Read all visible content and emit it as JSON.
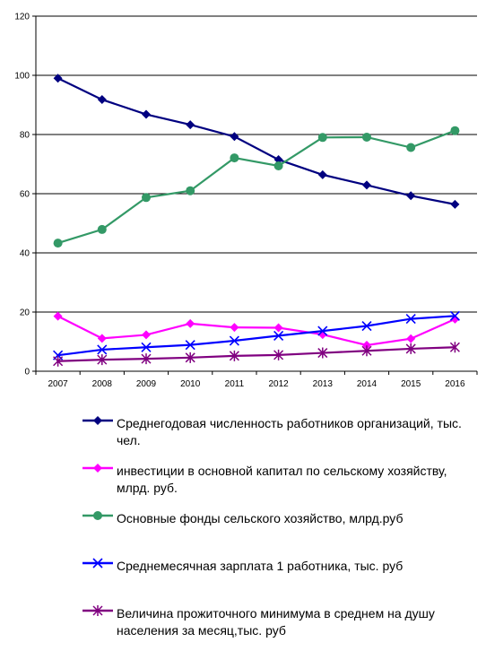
{
  "chart_data": {
    "type": "line",
    "x": [
      "2007",
      "2008",
      "2009",
      "2010",
      "2011",
      "2012",
      "2013",
      "2014",
      "2015",
      "2016"
    ],
    "ylim": [
      0,
      120
    ],
    "yticks": [
      0,
      20,
      40,
      60,
      80,
      100,
      120
    ],
    "grid": "horizontal",
    "legend_position": "bottom",
    "series": [
      {
        "name": "Среднегодовая численность работников организаций, тыс. чел.",
        "color": "#000080",
        "marker": "diamond",
        "values": [
          99,
          91.8,
          86.8,
          83.3,
          79.3,
          71.5,
          66.4,
          62.9,
          59.3,
          56.4
        ]
      },
      {
        "name": "инвестиции в основной капитал по сельскому хозяйству, млрд. руб.",
        "color": "#FF00FF",
        "marker": "diamond",
        "values": [
          18.6,
          11.1,
          12.3,
          16.1,
          14.8,
          14.7,
          12.4,
          8.8,
          11.0,
          17.6
        ]
      },
      {
        "name": "Основные фонды сельского хозяйство, млрд.руб",
        "color": "#339966",
        "marker": "circle",
        "values": [
          43.3,
          47.9,
          58.7,
          61.0,
          72.1,
          69.4,
          79.0,
          79.1,
          75.6,
          81.3
        ]
      },
      {
        "name": "Среднемесячная зарплата 1 работника, тыс. руб",
        "color": "#0000FF",
        "marker": "x",
        "values": [
          5.4,
          7.3,
          8.1,
          8.9,
          10.3,
          12.0,
          13.6,
          15.3,
          17.7,
          18.7
        ]
      },
      {
        "name": "Величина прожиточного минимума в среднем на душу населения за месяц,тыс. руб",
        "color": "#800080",
        "marker": "star",
        "values": [
          3.4,
          3.9,
          4.2,
          4.6,
          5.2,
          5.5,
          6.2,
          6.9,
          7.6,
          8.1
        ]
      }
    ]
  }
}
